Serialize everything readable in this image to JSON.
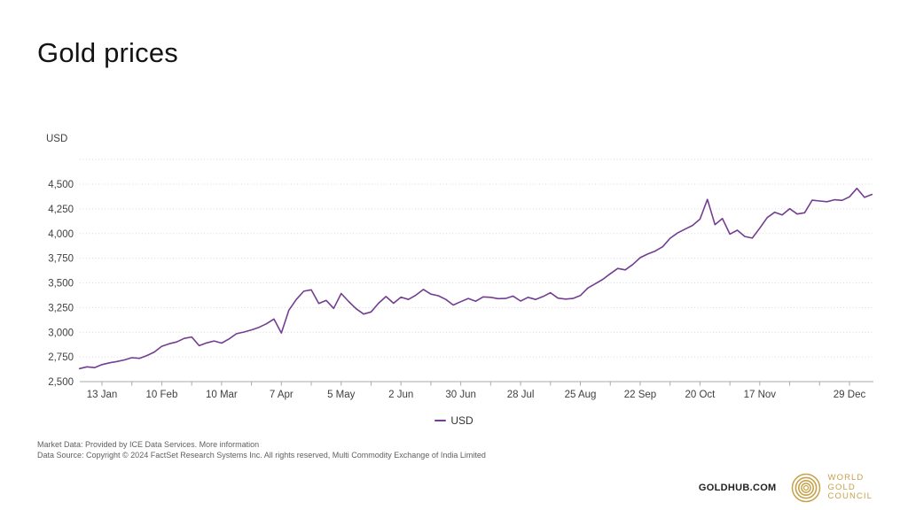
{
  "page": {
    "title": "Gold prices"
  },
  "axis": {
    "unit_label": "USD"
  },
  "legend": {
    "items": [
      {
        "label": "USD",
        "color": "#733E91"
      }
    ]
  },
  "chart_data": {
    "type": "line",
    "title": "Gold prices",
    "ylabel": "USD",
    "grid": true,
    "legend_position": "bottom-center",
    "line_color": "#733E91",
    "ylim": [
      2500,
      4750
    ],
    "y_ticks": [
      {
        "value": 2500,
        "label": "2,500"
      },
      {
        "value": 2750,
        "label": "2,750"
      },
      {
        "value": 3000,
        "label": "3,000"
      },
      {
        "value": 3250,
        "label": "3,250"
      },
      {
        "value": 3500,
        "label": "3,500"
      },
      {
        "value": 3750,
        "label": "3,750"
      },
      {
        "value": 4000,
        "label": "4,000"
      },
      {
        "value": 4250,
        "label": "4,250"
      },
      {
        "value": 4500,
        "label": "4,500"
      }
    ],
    "x_ticks": [
      {
        "week": 0,
        "label": "13 Jan"
      },
      {
        "week": 4,
        "label": "10 Feb"
      },
      {
        "week": 8,
        "label": "10 Mar"
      },
      {
        "week": 12,
        "label": "7 Apr"
      },
      {
        "week": 16,
        "label": "5 May"
      },
      {
        "week": 20,
        "label": "2 Jun"
      },
      {
        "week": 24,
        "label": "30 Jun"
      },
      {
        "week": 28,
        "label": "28 Jul"
      },
      {
        "week": 32,
        "label": "25 Aug"
      },
      {
        "week": 36,
        "label": "22 Sep"
      },
      {
        "week": 40,
        "label": "20 Oct"
      },
      {
        "week": 44,
        "label": "17 Nov"
      },
      {
        "week": 50,
        "label": "29 Dec"
      }
    ],
    "x_minor_tick_step_weeks": 2,
    "x_minor_tick_max_week": 50,
    "series": [
      {
        "name": "USD",
        "color": "#733E91",
        "x_start_week": -1.5,
        "x_step_weeks": 0.5,
        "values": [
          2632,
          2650,
          2642,
          2672,
          2690,
          2704,
          2720,
          2742,
          2736,
          2764,
          2800,
          2858,
          2884,
          2902,
          2938,
          2952,
          2864,
          2892,
          2912,
          2890,
          2932,
          2985,
          3002,
          3024,
          3050,
          3086,
          3134,
          2992,
          3224,
          3332,
          3416,
          3430,
          3292,
          3322,
          3242,
          3392,
          3312,
          3238,
          3184,
          3206,
          3294,
          3362,
          3294,
          3356,
          3332,
          3376,
          3434,
          3386,
          3370,
          3332,
          3276,
          3310,
          3342,
          3314,
          3358,
          3354,
          3340,
          3342,
          3366,
          3316,
          3354,
          3332,
          3362,
          3400,
          3346,
          3336,
          3342,
          3372,
          3448,
          3492,
          3536,
          3592,
          3646,
          3632,
          3686,
          3756,
          3792,
          3822,
          3866,
          3952,
          4006,
          4044,
          4082,
          4146,
          4346,
          4090,
          4152,
          3994,
          4034,
          3970,
          3954,
          4054,
          4162,
          4216,
          4188,
          4252,
          4198,
          4210,
          4338,
          4330,
          4322,
          4342,
          4336,
          4372,
          4458,
          4366,
          4396
        ]
      }
    ]
  },
  "footer": {
    "market_data_prefix": "Market Data: Provided by ICE Data Services. ",
    "more_information_label": "More information",
    "data_source": "Data Source: Copyright © 2024 FactSet Research Systems Inc. All rights reserved, Multi Commodity Exchange of India Limited"
  },
  "branding": {
    "site_label": "GOLDHUB.COM",
    "logo_lines": [
      "WORLD",
      "GOLD",
      "COUNCIL"
    ],
    "logo_color": "#C7A24B"
  }
}
